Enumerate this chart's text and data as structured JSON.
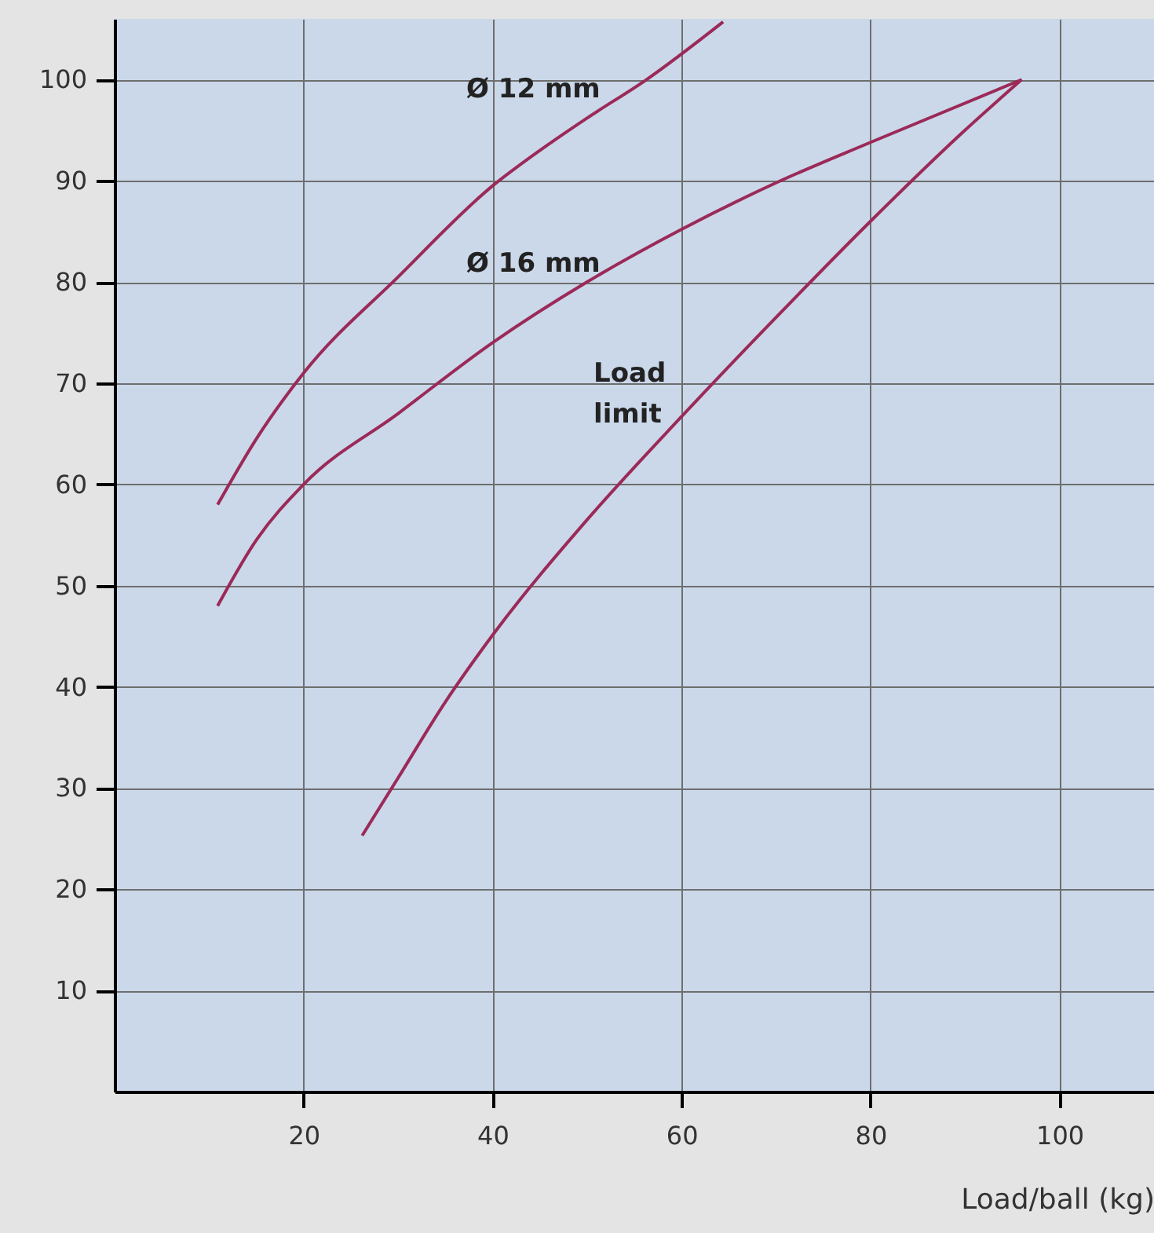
{
  "chart_data": {
    "type": "line",
    "xlabel": "Load/ball (kg)",
    "xlim": [
      0,
      110
    ],
    "ylim": [
      0,
      106
    ],
    "xticks": [
      20,
      40,
      60,
      80,
      100
    ],
    "yticks": [
      10,
      20,
      30,
      40,
      50,
      60,
      70,
      80,
      90,
      100
    ],
    "grid": true,
    "marker": "none",
    "line_style": "solid",
    "series": [
      {
        "name": "Ø 12 mm",
        "color": "#9b2a58",
        "x": [
          10.9,
          15,
          20,
          30,
          40,
          45,
          50,
          56.3,
          64.4
        ],
        "values": [
          58,
          64.5,
          71,
          80.5,
          89.5,
          93,
          96.2,
          100,
          105.7
        ]
      },
      {
        "name": "Ø 16 mm",
        "color": "#9b2a58",
        "x": [
          10.9,
          15,
          20,
          30,
          40,
          50,
          60,
          70,
          80,
          96
        ],
        "values": [
          48,
          54.5,
          60,
          67,
          74,
          80,
          85.2,
          89.8,
          93.8,
          100
        ]
      },
      {
        "name": "Load limit",
        "color": "#9b2a58",
        "x": [
          26.2,
          30,
          35,
          40,
          50,
          60,
          70,
          80,
          90,
          96
        ],
        "values": [
          25.3,
          31,
          38.5,
          45.1,
          56.5,
          66.7,
          76.5,
          86,
          95,
          100
        ]
      }
    ]
  }
}
